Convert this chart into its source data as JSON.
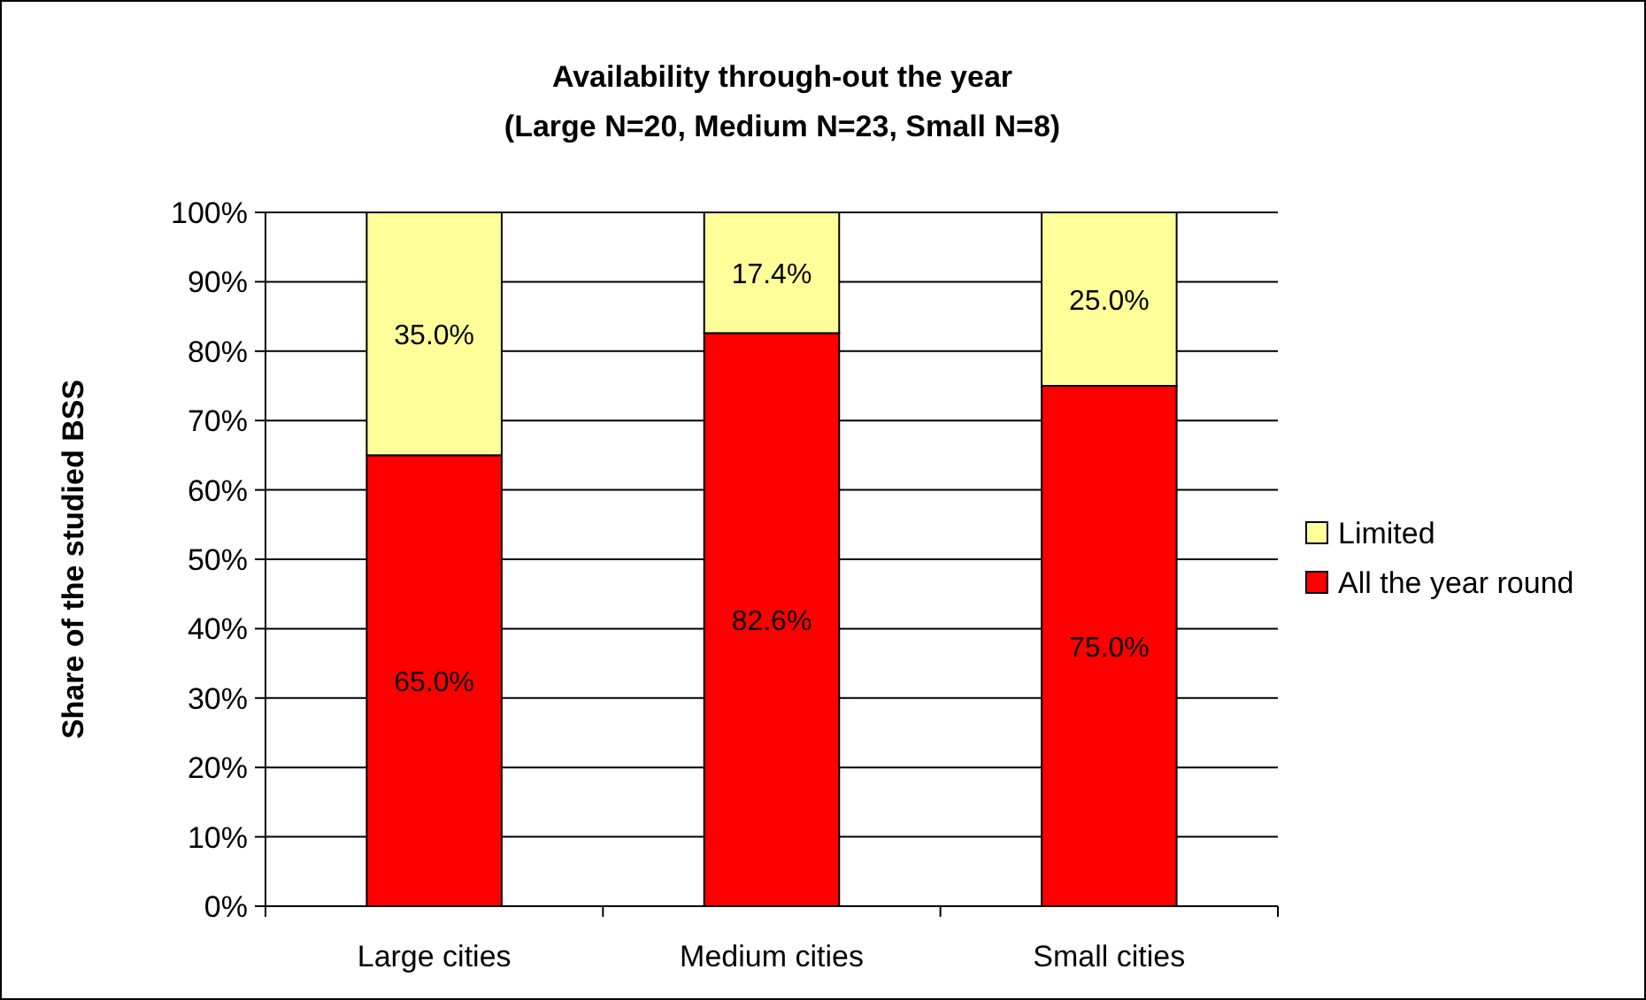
{
  "chart_data": {
    "type": "bar",
    "title": "Availability through-out the year",
    "subtitle": "(Large N=20, Medium N=23, Small N=8)",
    "ylabel": "Share of the studied BSS",
    "categories": [
      "Large cities",
      "Medium cities",
      "Small cities"
    ],
    "stacked": true,
    "series": [
      {
        "name": "All the year round",
        "color": "#ff0000",
        "values": [
          65.0,
          82.6,
          75.0
        ],
        "value_labels": [
          "65.0%",
          "82.6%",
          "75.0%"
        ]
      },
      {
        "name": "Limited",
        "color": "#ffff99",
        "values": [
          35.0,
          17.4,
          25.0
        ],
        "value_labels": [
          "35.0%",
          "17.4%",
          "25.0%"
        ]
      }
    ],
    "ylim": [
      0,
      100
    ],
    "yticks": [
      {
        "value": 0,
        "label": "0%"
      },
      {
        "value": 10,
        "label": "10%"
      },
      {
        "value": 20,
        "label": "20%"
      },
      {
        "value": 30,
        "label": "30%"
      },
      {
        "value": 40,
        "label": "40%"
      },
      {
        "value": 50,
        "label": "50%"
      },
      {
        "value": 60,
        "label": "60%"
      },
      {
        "value": 70,
        "label": "70%"
      },
      {
        "value": 80,
        "label": "80%"
      },
      {
        "value": 90,
        "label": "90%"
      },
      {
        "value": 100,
        "label": "100%"
      }
    ],
    "grid": "y",
    "legend": "right"
  }
}
